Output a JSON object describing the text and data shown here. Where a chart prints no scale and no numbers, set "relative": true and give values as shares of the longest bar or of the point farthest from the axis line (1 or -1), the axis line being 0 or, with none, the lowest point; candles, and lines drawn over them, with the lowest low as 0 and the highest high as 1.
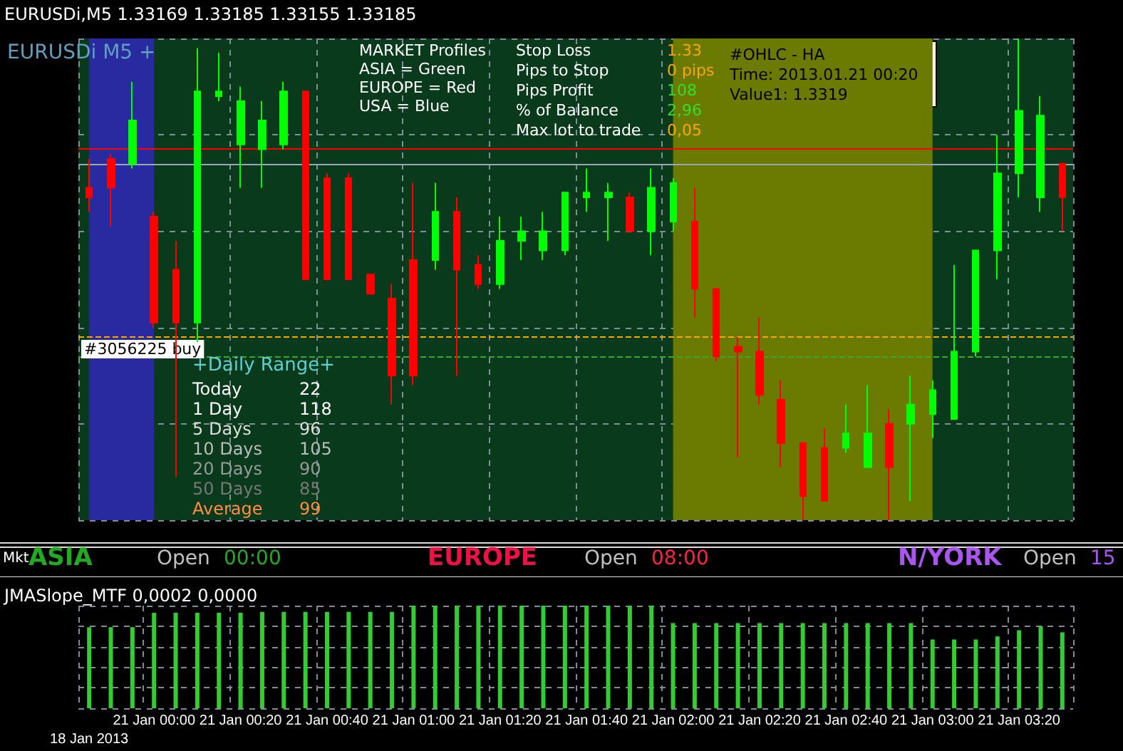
{
  "chart_data": [
    {
      "type": "candlestick",
      "title": "EURUSDi,M5 1.33169 1.33185 1.33155 1.33185",
      "relative": true,
      "grid": true,
      "tick_labels": false,
      "categories": [
        "18 Jan 2013",
        null,
        null,
        "21 Jan 00:00",
        null,
        null,
        null,
        "21 Jan 00:20",
        null,
        null,
        null,
        "21 Jan 00:40",
        null,
        null,
        null,
        "21 Jan 01:00",
        null,
        null,
        null,
        "21 Jan 01:20",
        null,
        null,
        null,
        "21 Jan 01:40",
        null,
        null,
        null,
        "21 Jan 02:00",
        null,
        null,
        null,
        "21 Jan 02:20",
        null,
        null,
        null,
        "21 Jan 02:40",
        null,
        null,
        null,
        "21 Jan 03:00",
        null,
        null,
        null,
        "21 Jan 03:20",
        null,
        null
      ],
      "ohlc": [
        [
          0.69,
          0.75,
          0.64,
          0.67
        ],
        [
          0.75,
          0.76,
          0.61,
          0.69
        ],
        [
          0.74,
          0.91,
          0.73,
          0.83
        ],
        [
          0.63,
          0.64,
          0.4,
          0.41
        ],
        [
          0.52,
          0.58,
          0.09,
          0.41
        ],
        [
          0.41,
          0.98,
          0.37,
          0.89
        ],
        [
          0.88,
          0.97,
          0.87,
          0.89
        ],
        [
          0.78,
          0.9,
          0.69,
          0.87
        ],
        [
          0.77,
          0.87,
          0.69,
          0.83
        ],
        [
          0.78,
          0.91,
          0.77,
          0.89
        ],
        [
          0.89,
          0.89,
          0.5,
          0.5
        ],
        [
          0.71,
          0.72,
          0.5,
          0.5
        ],
        [
          0.71,
          0.72,
          0.5,
          0.5
        ],
        [
          0.51,
          0.51,
          0.47,
          0.47
        ],
        [
          0.46,
          0.49,
          0.24,
          0.3
        ],
        [
          0.54,
          0.7,
          0.28,
          0.3
        ],
        [
          0.54,
          0.7,
          0.52,
          0.64
        ],
        [
          0.64,
          0.67,
          0.3,
          0.52
        ],
        [
          0.53,
          0.55,
          0.48,
          0.49
        ],
        [
          0.49,
          0.63,
          0.48,
          0.58
        ],
        [
          0.58,
          0.63,
          0.54,
          0.6
        ],
        [
          0.56,
          0.64,
          0.54,
          0.6
        ],
        [
          0.56,
          0.68,
          0.55,
          0.68
        ],
        [
          0.67,
          0.73,
          0.64,
          0.68
        ],
        [
          0.67,
          0.7,
          0.58,
          0.68
        ],
        [
          0.67,
          0.68,
          0.6,
          0.6
        ],
        [
          0.6,
          0.73,
          0.55,
          0.69
        ],
        [
          0.62,
          0.71,
          0.6,
          0.7
        ],
        [
          0.62,
          0.69,
          0.42,
          0.48
        ],
        [
          0.48,
          0.48,
          0.33,
          0.34
        ],
        [
          0.36,
          0.38,
          0.13,
          0.35
        ],
        [
          0.35,
          0.42,
          0.24,
          0.26
        ],
        [
          0.25,
          0.29,
          0.11,
          0.16
        ],
        [
          0.16,
          0.16,
          0,
          0.05
        ],
        [
          0.15,
          0.19,
          0.04,
          0.04
        ],
        [
          0.15,
          0.24,
          0.14,
          0.18
        ],
        [
          0.11,
          0.28,
          0.11,
          0.18
        ],
        [
          0.2,
          0.23,
          0,
          0.11
        ],
        [
          0.2,
          0.3,
          0.04,
          0.24
        ],
        [
          0.22,
          0.29,
          0.17,
          0.27
        ],
        [
          0.21,
          0.53,
          0.21,
          0.35
        ],
        [
          0.35,
          0.56,
          0.34,
          0.56
        ],
        [
          0.56,
          0.8,
          0.5,
          0.72
        ],
        [
          0.72,
          1,
          0.67,
          0.85
        ],
        [
          0.67,
          0.88,
          0.64,
          0.84
        ],
        [
          0.74,
          0.74,
          0.6,
          0.67
        ]
      ],
      "ref_lines": [
        {
          "axis": "y",
          "value": 0.77,
          "color": "#ff0000",
          "line_style": "solid"
        },
        {
          "axis": "y",
          "value": 0.74,
          "color": "#9aa6b8",
          "line_style": "solid"
        },
        {
          "axis": "y",
          "value": 0.38,
          "label": "#3056225 buy",
          "color": "#ffa500",
          "line_style": "dashed"
        },
        {
          "axis": "y",
          "value": 0.34,
          "color": "#33aa33",
          "line_style": "dashed"
        }
      ],
      "bands": [
        {
          "axis": "x",
          "from": "18 Jan 2013",
          "to": "21 Jan 00:00",
          "color": "#2a2aa0"
        },
        {
          "axis": "x",
          "from": "21 Jan 02:00",
          "to": "21 Jan 03:00",
          "color": "#6b7a00"
        }
      ],
      "annotations": [
        "EURUSDi M5 +",
        "MARKET Profiles",
        "ASIA = Green",
        "EUROPE = Red",
        "USA = Blue",
        "Stop Loss",
        "1.33",
        "Pips to Stop",
        "0 pips",
        "Pips Profit",
        "108",
        "% of Balance",
        "2,96",
        "Max lot to trade",
        "0,05",
        "#OHLC - HA",
        "Time: 2013.01.21 00:20",
        "Value1: 1.3319",
        "+Daily Range+",
        "Today",
        "22",
        "1 Day",
        "118",
        "5 Days",
        "96",
        "10 Days",
        "105",
        "20 Days",
        "90",
        "50 Days",
        "85",
        "Average",
        "99",
        "Mkt",
        "ASIA",
        "Open",
        "00:00",
        "EUROPE",
        "Open",
        "08:00",
        "N/YORK",
        "Open",
        "15"
      ]
    },
    {
      "type": "bar",
      "title": "JMASlope_MTF 0,0002 0,0000",
      "relative": true,
      "grid": true,
      "tick_labels": "x",
      "color": "#33cc33",
      "categories": [
        "18 Jan 2013",
        null,
        null,
        "21 Jan 00:00",
        null,
        null,
        null,
        "21 Jan 00:20",
        null,
        null,
        null,
        "21 Jan 00:40",
        null,
        null,
        null,
        "21 Jan 01:00",
        null,
        null,
        null,
        "21 Jan 01:20",
        null,
        null,
        null,
        "21 Jan 01:40",
        null,
        null,
        null,
        "21 Jan 02:00",
        null,
        null,
        null,
        "21 Jan 02:20",
        null,
        null,
        null,
        "21 Jan 02:40",
        null,
        null,
        null,
        "21 Jan 03:00",
        null,
        null,
        null,
        "21 Jan 03:20",
        null,
        null
      ],
      "values": [
        0.79,
        0.79,
        0.79,
        0.93,
        0.93,
        0.93,
        0.93,
        0.93,
        0.94,
        0.94,
        0.94,
        0.94,
        0.94,
        0.94,
        0.94,
        1,
        1,
        1,
        1,
        1,
        1,
        1,
        1,
        1,
        1,
        1,
        1,
        0.83,
        0.83,
        0.83,
        0.83,
        0.83,
        0.83,
        0.83,
        0.83,
        0.83,
        0.83,
        0.83,
        0.83,
        0.67,
        0.67,
        0.67,
        0.7,
        0.76,
        0.8,
        0.74
      ]
    }
  ]
}
